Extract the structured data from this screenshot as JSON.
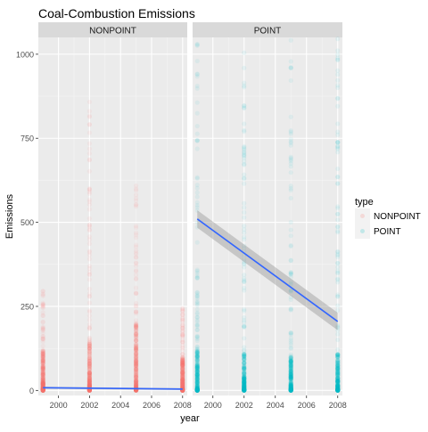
{
  "chart_data": {
    "type": "scatter",
    "title": "Coal-Combustion Emissions",
    "xlabel": "year",
    "ylabel": "Emissions",
    "x_ticks": [
      2000,
      2002,
      2004,
      2006,
      2008
    ],
    "y_ticks": [
      0,
      250,
      500,
      750,
      1000
    ],
    "xlim": [
      1998.7,
      2008.3
    ],
    "ylim": [
      -15,
      1050
    ],
    "grid": true,
    "legend": {
      "title": "type",
      "placement": "right",
      "entries": [
        {
          "label": "NONPOINT",
          "color": "#F8766D"
        },
        {
          "label": "POINT",
          "color": "#00BFC4"
        }
      ]
    },
    "panels": [
      {
        "strip": "NONPOINT",
        "color": "#F8766D",
        "years": [
          1999,
          2002,
          2005,
          2008
        ],
        "point_max": [
          300,
          860,
          620,
          250
        ],
        "dense_max": [
          120,
          150,
          200,
          100
        ],
        "fit": {
          "x": [
            1999,
            2008
          ],
          "y": [
            8,
            4
          ]
        },
        "band_halfwidth": [
          3,
          3
        ]
      },
      {
        "strip": "POINT",
        "color": "#00BFC4",
        "years": [
          1999,
          2002,
          2005,
          2008
        ],
        "point_max": [
          1050,
          1050,
          1050,
          1050
        ],
        "dense_max": [
          120,
          110,
          100,
          110
        ],
        "fit": {
          "x": [
            1999,
            2008
          ],
          "y": [
            510,
            205
          ]
        },
        "band_halfwidth": [
          26,
          26
        ]
      }
    ],
    "fit_color": "#3366FF",
    "band_color": "#999999"
  }
}
